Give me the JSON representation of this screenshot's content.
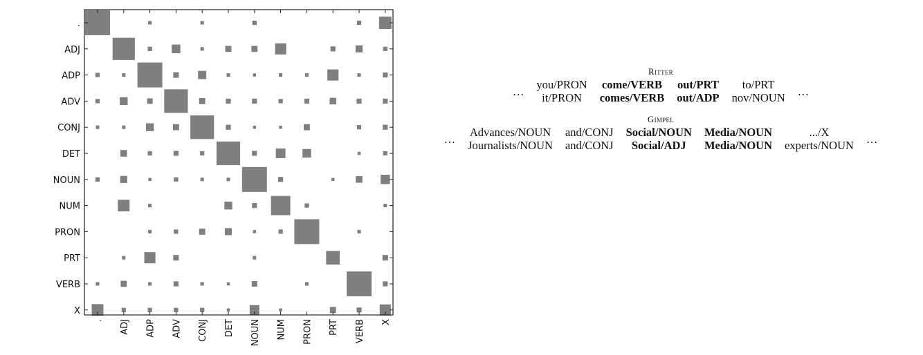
{
  "chart_data": {
    "type": "heatmap",
    "encoding": "square area proportional to value",
    "color": "#7f7f7f",
    "row_labels": [
      ".",
      "ADJ",
      "ADP",
      "ADV",
      "CONJ",
      "DET",
      "NOUN",
      "NUM",
      "PRON",
      "PRT",
      "VERB",
      "X"
    ],
    "col_labels": [
      ".",
      "ADJ",
      "ADP",
      "ADV",
      "CONJ",
      "DET",
      "NOUN",
      "NUM",
      "PRON",
      "PRT",
      "VERB",
      "X"
    ],
    "values": [
      [
        1.0,
        0,
        0.02,
        0,
        0.02,
        0,
        0.03,
        0,
        0,
        0,
        0.03,
        0.25
      ],
      [
        0,
        0.8,
        0.03,
        0.12,
        0.02,
        0.06,
        0.06,
        0.2,
        0,
        0.04,
        0.08,
        0.03
      ],
      [
        0.03,
        0.02,
        1.0,
        0.05,
        0.11,
        0.02,
        0.01,
        0.02,
        0.02,
        0.2,
        0.02,
        0.04
      ],
      [
        0.03,
        0.1,
        0.05,
        0.9,
        0.06,
        0.04,
        0.04,
        0.03,
        0.04,
        0.07,
        0.04,
        0.04
      ],
      [
        0.02,
        0.02,
        0.1,
        0.06,
        0.9,
        0.04,
        0.01,
        0.01,
        0.06,
        0,
        0.03,
        0.04
      ],
      [
        0,
        0.07,
        0.03,
        0.04,
        0.03,
        0.9,
        0.04,
        0.15,
        0.12,
        0,
        0.01,
        0.03
      ],
      [
        0.03,
        0.08,
        0.01,
        0.03,
        0.02,
        0.02,
        1.0,
        0.04,
        0,
        0.01,
        0.07,
        0.14
      ],
      [
        0,
        0.22,
        0.02,
        0,
        0,
        0.1,
        0.04,
        0.6,
        0.03,
        0,
        0,
        0.02
      ],
      [
        0,
        0,
        0.02,
        0.03,
        0.06,
        0.08,
        0.01,
        0.03,
        1.0,
        0,
        0.02,
        0
      ],
      [
        0,
        0.02,
        0.2,
        0.05,
        0,
        0,
        0.02,
        0,
        0,
        0.3,
        0,
        0.05
      ],
      [
        0.02,
        0.06,
        0.02,
        0.04,
        0.02,
        0.01,
        0.05,
        0,
        0.02,
        0,
        1.0,
        0.04
      ],
      [
        0.22,
        0.03,
        0.03,
        0.03,
        0.03,
        0.01,
        0.15,
        0.01,
        0,
        0.06,
        0.04,
        0.2
      ]
    ]
  },
  "examples": {
    "ritter": {
      "name": "Ritter",
      "ellipsis": "…",
      "row1": [
        {
          "text": "you/PRON",
          "bold": false
        },
        {
          "text": "come/VERB",
          "bold": true
        },
        {
          "text": "out/PRT",
          "bold": true
        },
        {
          "text": "to/PRT",
          "bold": false
        }
      ],
      "row2": [
        {
          "text": "it/PRON",
          "bold": false
        },
        {
          "text": "comes/VERB",
          "bold": true
        },
        {
          "text": "out/ADP",
          "bold": true
        },
        {
          "text": "nov/NOUN",
          "bold": false
        }
      ]
    },
    "gimpel": {
      "name": "Gimpel",
      "ellipsis": "…",
      "row1": [
        {
          "text": "Advances/NOUN",
          "bold": false
        },
        {
          "text": "and/CONJ",
          "bold": false
        },
        {
          "text": "Social/NOUN",
          "bold": true
        },
        {
          "text": "Media/NOUN",
          "bold": true
        },
        {
          "text": ".../X",
          "bold": false
        }
      ],
      "row2": [
        {
          "text": "Journalists/NOUN",
          "bold": false
        },
        {
          "text": "and/CONJ",
          "bold": false
        },
        {
          "text": "Social/ADJ",
          "bold": true
        },
        {
          "text": "Media/NOUN",
          "bold": true
        },
        {
          "text": "experts/NOUN",
          "bold": false
        }
      ]
    }
  }
}
